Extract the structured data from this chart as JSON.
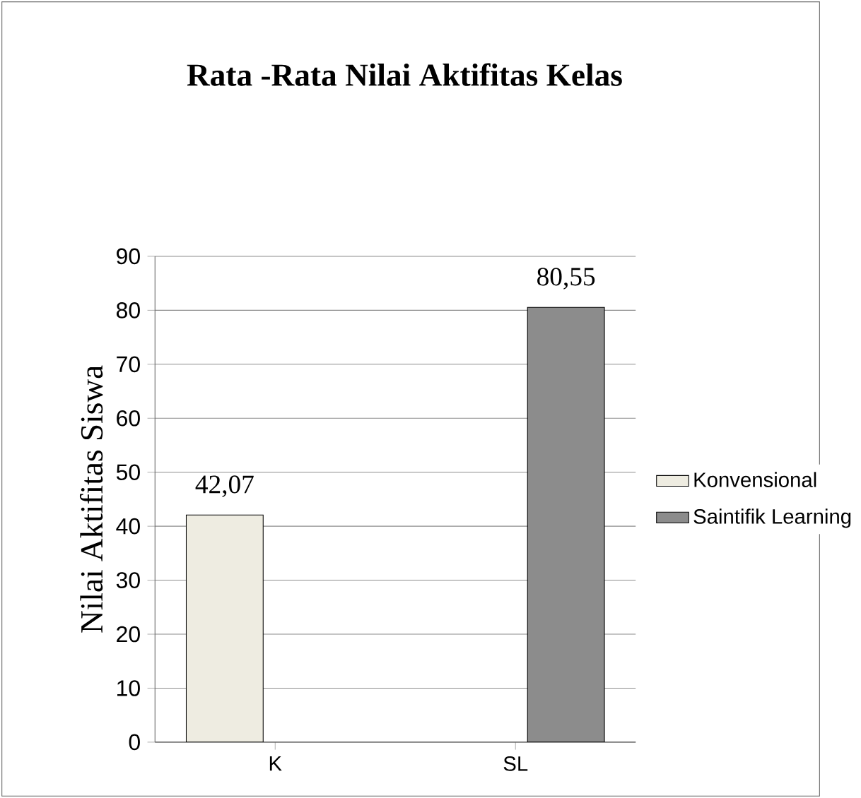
{
  "chart_data": {
    "type": "bar",
    "title": "Rata -Rata Nilai Aktifitas Kelas",
    "ylabel": "Nilai Aktifitas Siswa",
    "categories": [
      "K",
      "SL"
    ],
    "series": [
      {
        "name": "Konvensional",
        "color": "#eeece1",
        "values": [
          42.07,
          null
        ],
        "value_labels": [
          "42,07",
          null
        ]
      },
      {
        "name": "Saintifik Learning",
        "color": "#8c8c8c",
        "values": [
          null,
          80.55
        ],
        "value_labels": [
          null,
          "80,55"
        ]
      }
    ],
    "ylim": [
      0,
      90
    ],
    "yticks": [
      0,
      10,
      20,
      30,
      40,
      50,
      60,
      70,
      80,
      90
    ],
    "grid": "y",
    "legend": "right"
  }
}
